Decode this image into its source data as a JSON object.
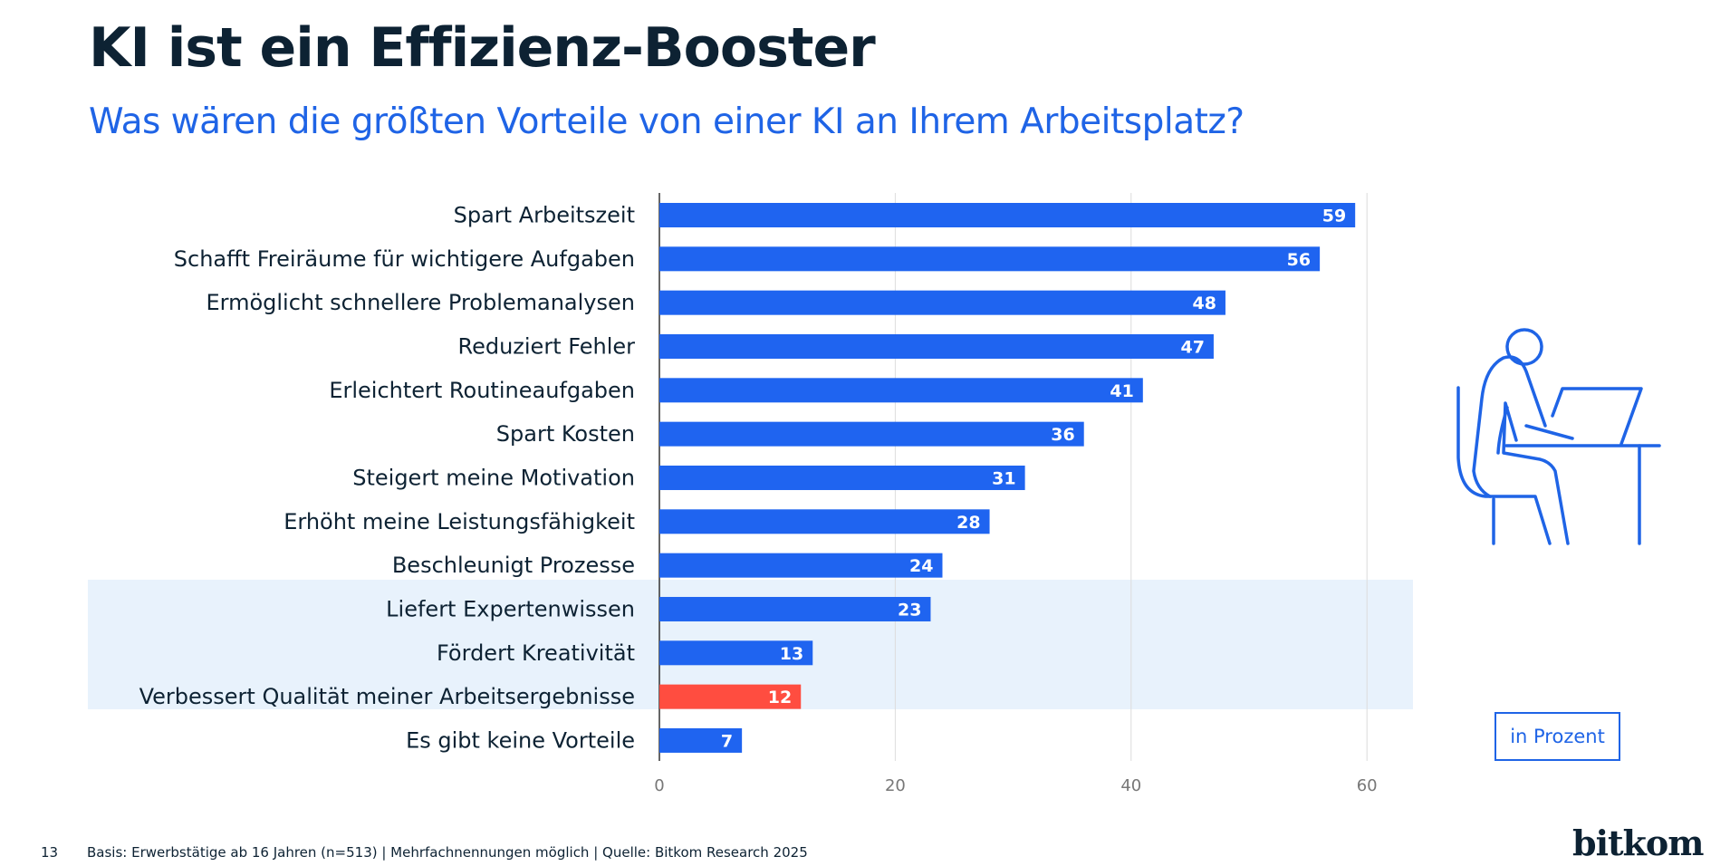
{
  "header": {
    "title": "KI ist ein Effizienz-Booster",
    "subtitle": "Was wären die größten Vorteile von einer KI an Ihrem Arbeitsplatz?"
  },
  "unit_label": "in Prozent",
  "footer": {
    "page_number": "13",
    "note": "Basis: Erwerbstätige ab 16 Jahren (n=513) | Mehrfachnennungen möglich | Quelle: Bitkom Research 2025",
    "logo": "bitkom"
  },
  "colors": {
    "bar": "#1f64f0",
    "highlight_bar": "#ff4d40",
    "highlight_band": "#e8f2fc",
    "accent": "#1f64e6"
  },
  "icons": [
    "person-at-desk-laptop-icon"
  ],
  "chart_data": {
    "type": "bar",
    "orientation": "horizontal",
    "categories": [
      "Spart Arbeitszeit",
      "Schafft Freiräume für wichtigere Aufgaben",
      "Ermöglicht schnellere Problemanalysen",
      "Reduziert Fehler",
      "Erleichtert Routineaufgaben",
      "Spart Kosten",
      "Steigert meine Motivation",
      "Erhöht meine Leistungsfähigkeit",
      "Beschleunigt Prozesse",
      "Liefert Expertenwissen",
      "Fördert Kreativität",
      "Verbessert Qualität meiner Arbeitsergebnisse",
      "Es gibt keine Vorteile"
    ],
    "values": [
      59,
      56,
      48,
      47,
      41,
      36,
      31,
      28,
      24,
      23,
      13,
      12,
      7
    ],
    "highlighted_band_categories": [
      "Liefert Expertenwissen",
      "Fördert Kreativität",
      "Verbessert Qualität meiner Arbeitsergebnisse"
    ],
    "highlighted_bar": "Verbessert Qualität meiner Arbeitsergebnisse",
    "xlim": [
      0,
      60
    ],
    "xticks": [
      0,
      20,
      40,
      60
    ],
    "grid": true,
    "data_labels": true
  }
}
